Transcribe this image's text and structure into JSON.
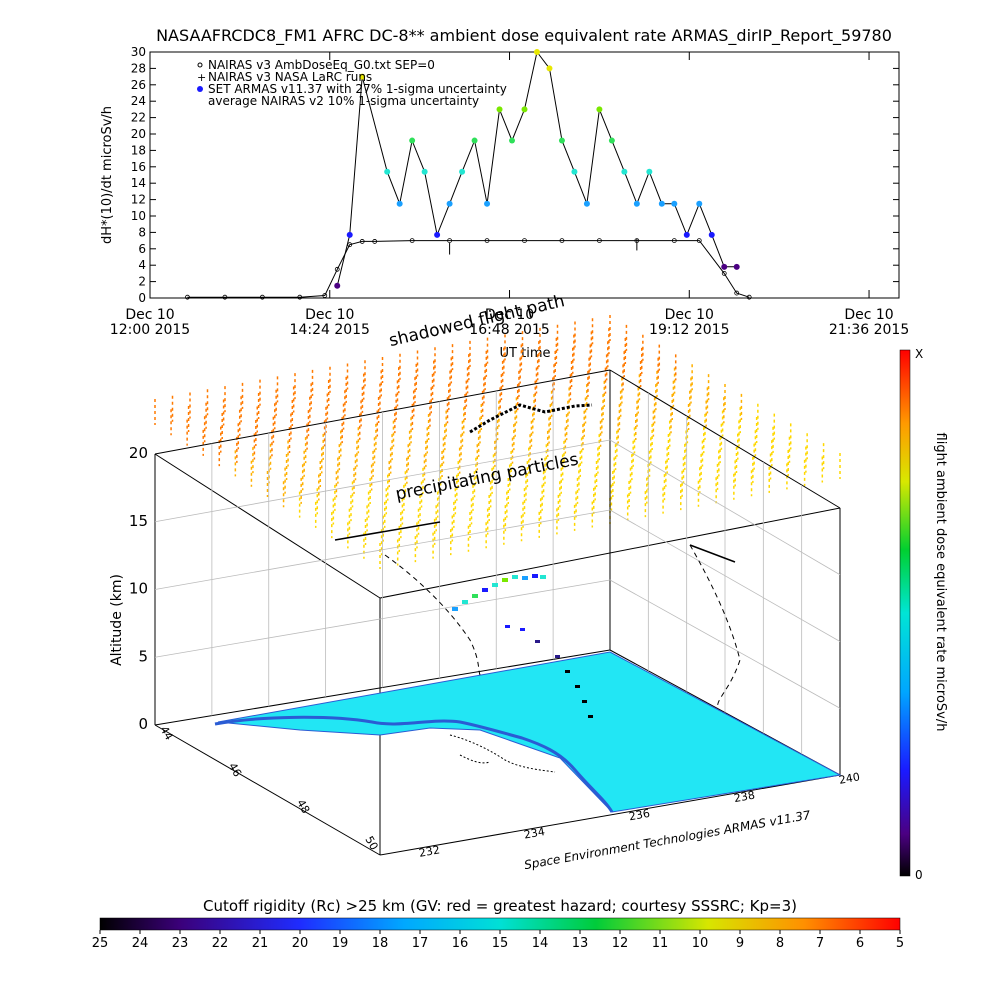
{
  "title": "NASAAFRCDC8_FM1 AFRC DC-8** ambient dose equivalent rate ARMAS_dirIP_Report_59780",
  "chart_data": [
    {
      "type": "line",
      "ylabel": "dH*(10)/dt microSv/h",
      "xlabel": "UT time",
      "ylim": [
        0,
        30
      ],
      "yticks": [
        0,
        2,
        4,
        6,
        8,
        10,
        12,
        14,
        16,
        18,
        20,
        22,
        24,
        26,
        28,
        30
      ],
      "x_ticks": [
        {
          "l1": "Dec 10",
          "l2": "12:00 2015"
        },
        {
          "l1": "Dec 10",
          "l2": "14:24 2015"
        },
        {
          "l1": "Dec 10",
          "l2": "16:48 2015"
        },
        {
          "l1": "Dec 10",
          "l2": "19:12 2015"
        },
        {
          "l1": "Dec 10",
          "l2": "21:36 2015"
        }
      ],
      "legend": [
        "NAIRAS v3 AmbDoseEq_G0.txt SEP=0",
        "NAIRAS v3 NASA LaRC runs",
        "SET ARMAS v11.37 with 27% 1-sigma uncertainty",
        "average NAIRAS v2 10% 1-sigma uncertainty"
      ],
      "legend_position": "top-left",
      "series": [
        {
          "name": "NAIRAS v3 AmbDoseEq_G0.txt SEP=0",
          "x": [
            "12:30",
            "13:00",
            "13:30",
            "14:00",
            "14:20",
            "14:30",
            "14:40",
            "14:50",
            "15:00",
            "15:30",
            "16:00",
            "16:30",
            "17:00",
            "17:30",
            "18:00",
            "18:30",
            "19:00",
            "19:20",
            "19:40",
            "19:50",
            "20:00"
          ],
          "values": [
            0.1,
            0.1,
            0.1,
            0.1,
            0.3,
            3.5,
            6.5,
            6.9,
            6.9,
            7.0,
            7.0,
            7.0,
            7.0,
            7.0,
            7.0,
            7.0,
            7.0,
            7.0,
            3.0,
            0.6,
            0.1
          ]
        },
        {
          "name": "SET ARMAS v11.37 with 27% 1-sigma uncertainty",
          "x": [
            "14:30",
            "14:40",
            "14:50",
            "15:10",
            "15:20",
            "15:30",
            "15:40",
            "15:50",
            "16:00",
            "16:10",
            "16:20",
            "16:30",
            "16:40",
            "16:50",
            "17:00",
            "17:10",
            "17:20",
            "17:30",
            "17:40",
            "17:50",
            "18:00",
            "18:10",
            "18:20",
            "18:30",
            "18:40",
            "18:50",
            "19:00",
            "19:10",
            "19:20",
            "19:30",
            "19:40",
            "19:50"
          ],
          "values": [
            1.5,
            7.7,
            27.0,
            15.4,
            11.5,
            19.2,
            15.4,
            7.7,
            11.5,
            15.4,
            19.2,
            11.5,
            23.0,
            19.2,
            23.0,
            30.0,
            28.0,
            19.2,
            15.4,
            11.5,
            23.0,
            19.2,
            15.4,
            11.5,
            15.4,
            11.5,
            11.5,
            7.7,
            11.5,
            7.7,
            3.8,
            3.8
          ]
        }
      ],
      "annotations": [
        "shadowed flight path"
      ]
    },
    {
      "type": "scatter",
      "title": "precipitating particles",
      "zlabel": "Altitude (km)",
      "z_ticks": [
        "0",
        "5",
        "10",
        "15",
        "20"
      ],
      "lat_ticks": [
        "44",
        "46",
        "48",
        "50"
      ],
      "lon_ticks": [
        "232",
        "234",
        "236",
        "238",
        "240"
      ],
      "colorbar_label": "flight ambient dose equivalent rate microSv/h",
      "colorbar_top": "X",
      "colorbar_bottom": "0",
      "credit": "Space Environment Technologies ARMAS v11.37"
    },
    {
      "type": "heatmap",
      "title": "Cutoff rigidity (Rc) >25 km (GV: red = greatest hazard; courtesy SSSRC; Kp=3)",
      "ticks": [
        "25",
        "24",
        "23",
        "22",
        "21",
        "20",
        "19",
        "18",
        "17",
        "16",
        "15",
        "14",
        "13",
        "12",
        "11",
        "10",
        "9",
        "8",
        "7",
        "6",
        "5"
      ]
    }
  ],
  "colors": {
    "ocean": "#22e6f4",
    "land_outline": "#2a5cd4",
    "dose_high": "#ff0000",
    "dose_low": "#000000"
  }
}
